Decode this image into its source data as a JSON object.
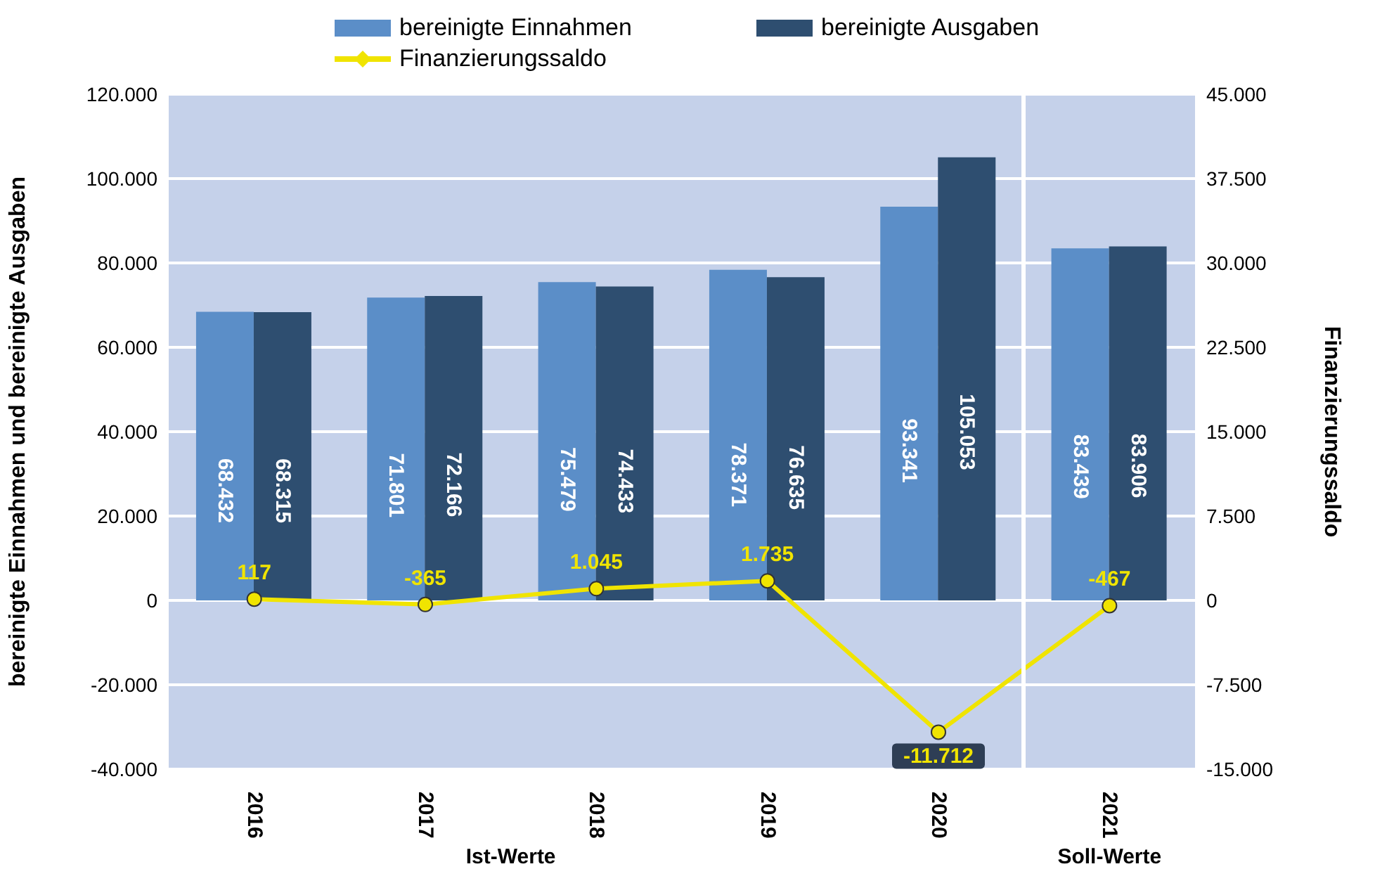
{
  "chart_data": {
    "type": "bar",
    "categories": [
      "2016",
      "2017",
      "2018",
      "2019",
      "2020",
      "2021"
    ],
    "series": [
      {
        "name": "bereinigte Einnahmen",
        "color": "#5b8ec8",
        "values": [
          68432,
          71801,
          75479,
          78371,
          93341,
          83439
        ],
        "value_labels": [
          "68.432",
          "71.801",
          "75.479",
          "78.371",
          "93.341",
          "83.439"
        ]
      },
      {
        "name": "bereinigte Ausgaben",
        "color": "#2e4e70",
        "values": [
          68315,
          72166,
          74433,
          76635,
          105053,
          83906
        ],
        "value_labels": [
          "68.315",
          "72.166",
          "74.433",
          "76.635",
          "105.053",
          "83.906"
        ]
      },
      {
        "name": "Finanzierungssaldo",
        "type": "line",
        "axis": "y2",
        "color": "#f0e400",
        "marker": "circle",
        "values": [
          117,
          -365,
          1045,
          1735,
          -11712,
          -467
        ],
        "value_labels": [
          "117",
          "-365",
          "1.045",
          "1.735",
          "-11.712",
          "-467"
        ]
      }
    ],
    "ylabel": "bereinigte Einnahmen und bereinigte Ausgaben",
    "y2label": "Finanzierungssaldo",
    "ylim": [
      -40000,
      120000
    ],
    "yticks": [
      {
        "value": -40000,
        "label": "-40.000"
      },
      {
        "value": -20000,
        "label": "-20.000"
      },
      0,
      {
        "value": 20000,
        "label": "20.000"
      },
      {
        "value": 40000,
        "label": "40.000"
      },
      {
        "value": 60000,
        "label": "60.000"
      },
      {
        "value": 80000,
        "label": "80.000"
      },
      {
        "value": 100000,
        "label": "100.000"
      },
      {
        "value": 120000,
        "label": "120.000"
      }
    ],
    "y2lim": [
      -15000,
      45000
    ],
    "y2ticks": [
      {
        "value": -15000,
        "label": "-15.000"
      },
      {
        "value": -7500,
        "label": "-7.500"
      },
      0,
      {
        "value": 7500,
        "label": "7.500"
      },
      {
        "value": 15000,
        "label": "15.000"
      },
      {
        "value": 22500,
        "label": "22.500"
      },
      {
        "value": 30000,
        "label": "30.000"
      },
      {
        "value": 37500,
        "label": "37.500"
      },
      {
        "value": 45000,
        "label": "45.000"
      }
    ],
    "grid": "y",
    "legend": "top",
    "annotations": [
      "Ist-Werte",
      "Soll-Werte"
    ]
  }
}
